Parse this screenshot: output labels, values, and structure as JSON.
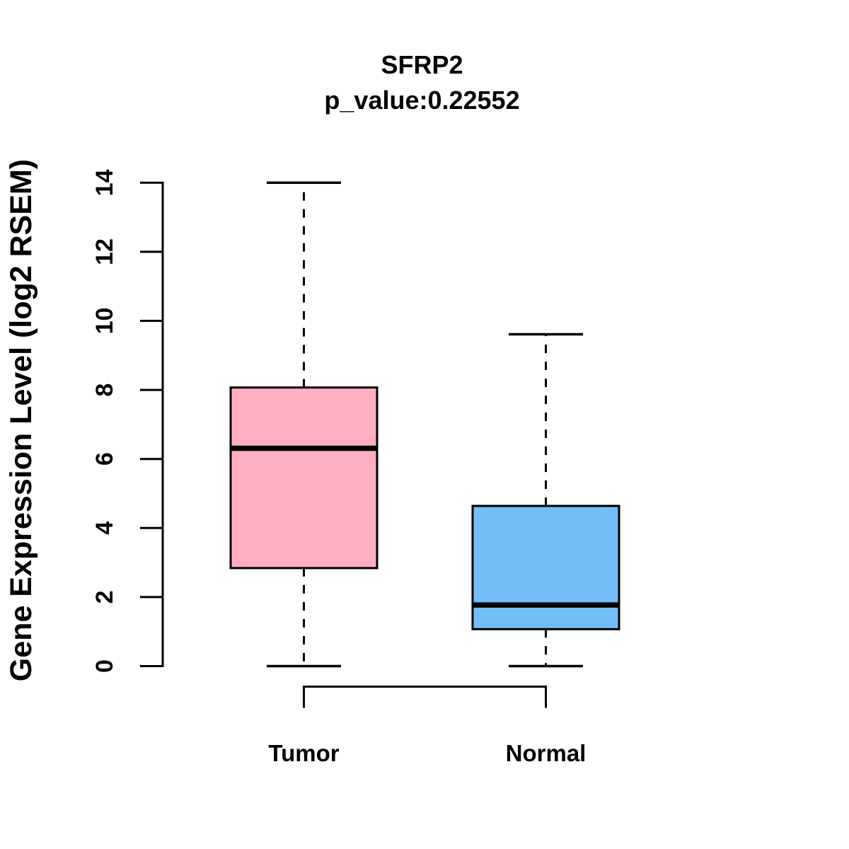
{
  "page": {
    "background": "#ffffff"
  },
  "header": {
    "title": "SFRP2",
    "subtitle": "p_value:0.22552"
  },
  "chart_data": {
    "type": "boxplot",
    "title": "SFRP2",
    "subtitle": "p_value:0.22552",
    "xlabel": "",
    "ylabel": "Gene Expression Level (log2 RSEM)",
    "ylim": [
      0,
      14
    ],
    "yticks": [
      0,
      2,
      4,
      6,
      8,
      10,
      12,
      14
    ],
    "categories": [
      "Tumor",
      "Normal"
    ],
    "series": [
      {
        "name": "Tumor",
        "whisker_low": 0,
        "q1": 2.84,
        "median": 6.31,
        "q3": 8.07,
        "whisker_high": 14.0,
        "color": "#FFAFC1"
      },
      {
        "name": "Normal",
        "whisker_low": 0,
        "q1": 1.07,
        "median": 1.77,
        "q3": 4.64,
        "whisker_high": 9.61,
        "color": "#74BEF7"
      }
    ],
    "annotations": {
      "comparison_bracket_between": [
        "Tumor",
        "Normal"
      ]
    },
    "style": {
      "box_border_color": "#000000",
      "median_color": "#000000",
      "whisker_style": "dashed",
      "grid": false,
      "legend": "none"
    }
  }
}
